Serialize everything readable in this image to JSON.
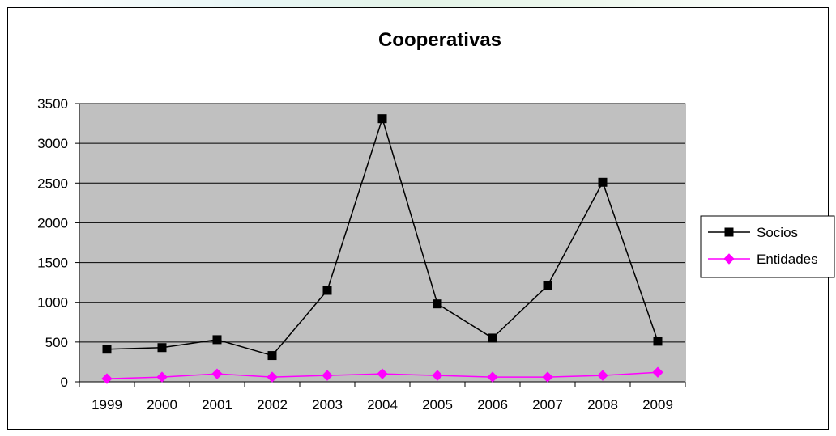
{
  "chart_data": {
    "type": "line",
    "title": "Cooperativas",
    "xlabel": "",
    "ylabel": "",
    "categories": [
      "1999",
      "2000",
      "2001",
      "2002",
      "2003",
      "2004",
      "2005",
      "2006",
      "2007",
      "2008",
      "2009"
    ],
    "yticks": [
      "0",
      "500",
      "1000",
      "1500",
      "2000",
      "2500",
      "3000",
      "3500"
    ],
    "ylim": [
      0,
      3500
    ],
    "grid": true,
    "plot_background": "#c0c0c0",
    "legend_position": "right",
    "series": [
      {
        "name": "Socios",
        "color": "#000000",
        "marker": "square",
        "values": [
          410,
          430,
          530,
          330,
          1150,
          3310,
          980,
          550,
          1210,
          2510,
          510
        ]
      },
      {
        "name": "Entidades",
        "color": "#ff00ff",
        "marker": "diamond",
        "values": [
          40,
          60,
          100,
          60,
          80,
          100,
          80,
          60,
          60,
          80,
          120
        ]
      }
    ]
  }
}
